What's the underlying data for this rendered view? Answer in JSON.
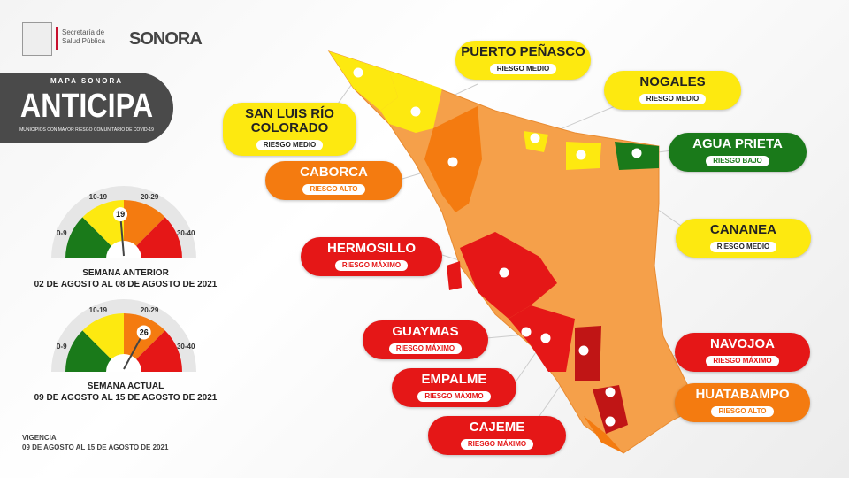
{
  "header": {
    "agency": "Secretaría de Salud Pública",
    "state_logo": "SONORA"
  },
  "banner": {
    "kicker": "MAPA SONORA",
    "title": "ANTICIPA",
    "subtitle": "MUNICIPIOS CON MAYOR RIESGO COMUNITARIO DE COVID-19"
  },
  "gauge_ranges": [
    "0-9",
    "10-19",
    "20-29",
    "30-40"
  ],
  "gauges": [
    {
      "value": 19,
      "label": "SEMANA ANTERIOR",
      "period": "02 DE AGOSTO AL 08 DE AGOSTO DE 2021"
    },
    {
      "value": 26,
      "label": "SEMANA ACTUAL",
      "period": "09 DE AGOSTO AL 15 DE AGOSTO DE 2021"
    }
  ],
  "vigencia": {
    "label": "VIGENCIA",
    "period": "09 DE AGOSTO AL 15 DE AGOSTO DE  2021"
  },
  "colors": {
    "bajo": "#1a7a1a",
    "medio": "#fde910",
    "alto": "#f47b10",
    "maximo": "#e51717",
    "base": "#f5a04a"
  },
  "municipios": [
    {
      "name": "PUERTO PEÑASCO",
      "risk": "RIESGO MEDIO",
      "level": "y"
    },
    {
      "name": "NOGALES",
      "risk": "RIESGO MEDIO",
      "level": "y"
    },
    {
      "name": "SAN LUIS RÍO COLORADO",
      "risk": "RIESGO MEDIO",
      "level": "y"
    },
    {
      "name": "AGUA PRIETA",
      "risk": "RIESGO BAJO",
      "level": "g"
    },
    {
      "name": "CABORCA",
      "risk": "RIESGO ALTO",
      "level": "o"
    },
    {
      "name": "CANANEA",
      "risk": "RIESGO MEDIO",
      "level": "y"
    },
    {
      "name": "HERMOSILLO",
      "risk": "RIESGO MÁXIMO",
      "level": "rd"
    },
    {
      "name": "GUAYMAS",
      "risk": "RIESGO MÁXIMO",
      "level": "rd"
    },
    {
      "name": "NAVOJOA",
      "risk": "RIESGO MÁXIMO",
      "level": "rd"
    },
    {
      "name": "EMPALME",
      "risk": "RIESGO MÁXIMO",
      "level": "rd"
    },
    {
      "name": "HUATABAMPO",
      "risk": "RIESGO ALTO",
      "level": "o"
    },
    {
      "name": "CAJEME",
      "risk": "RIESGO MÁXIMO",
      "level": "rd"
    }
  ]
}
